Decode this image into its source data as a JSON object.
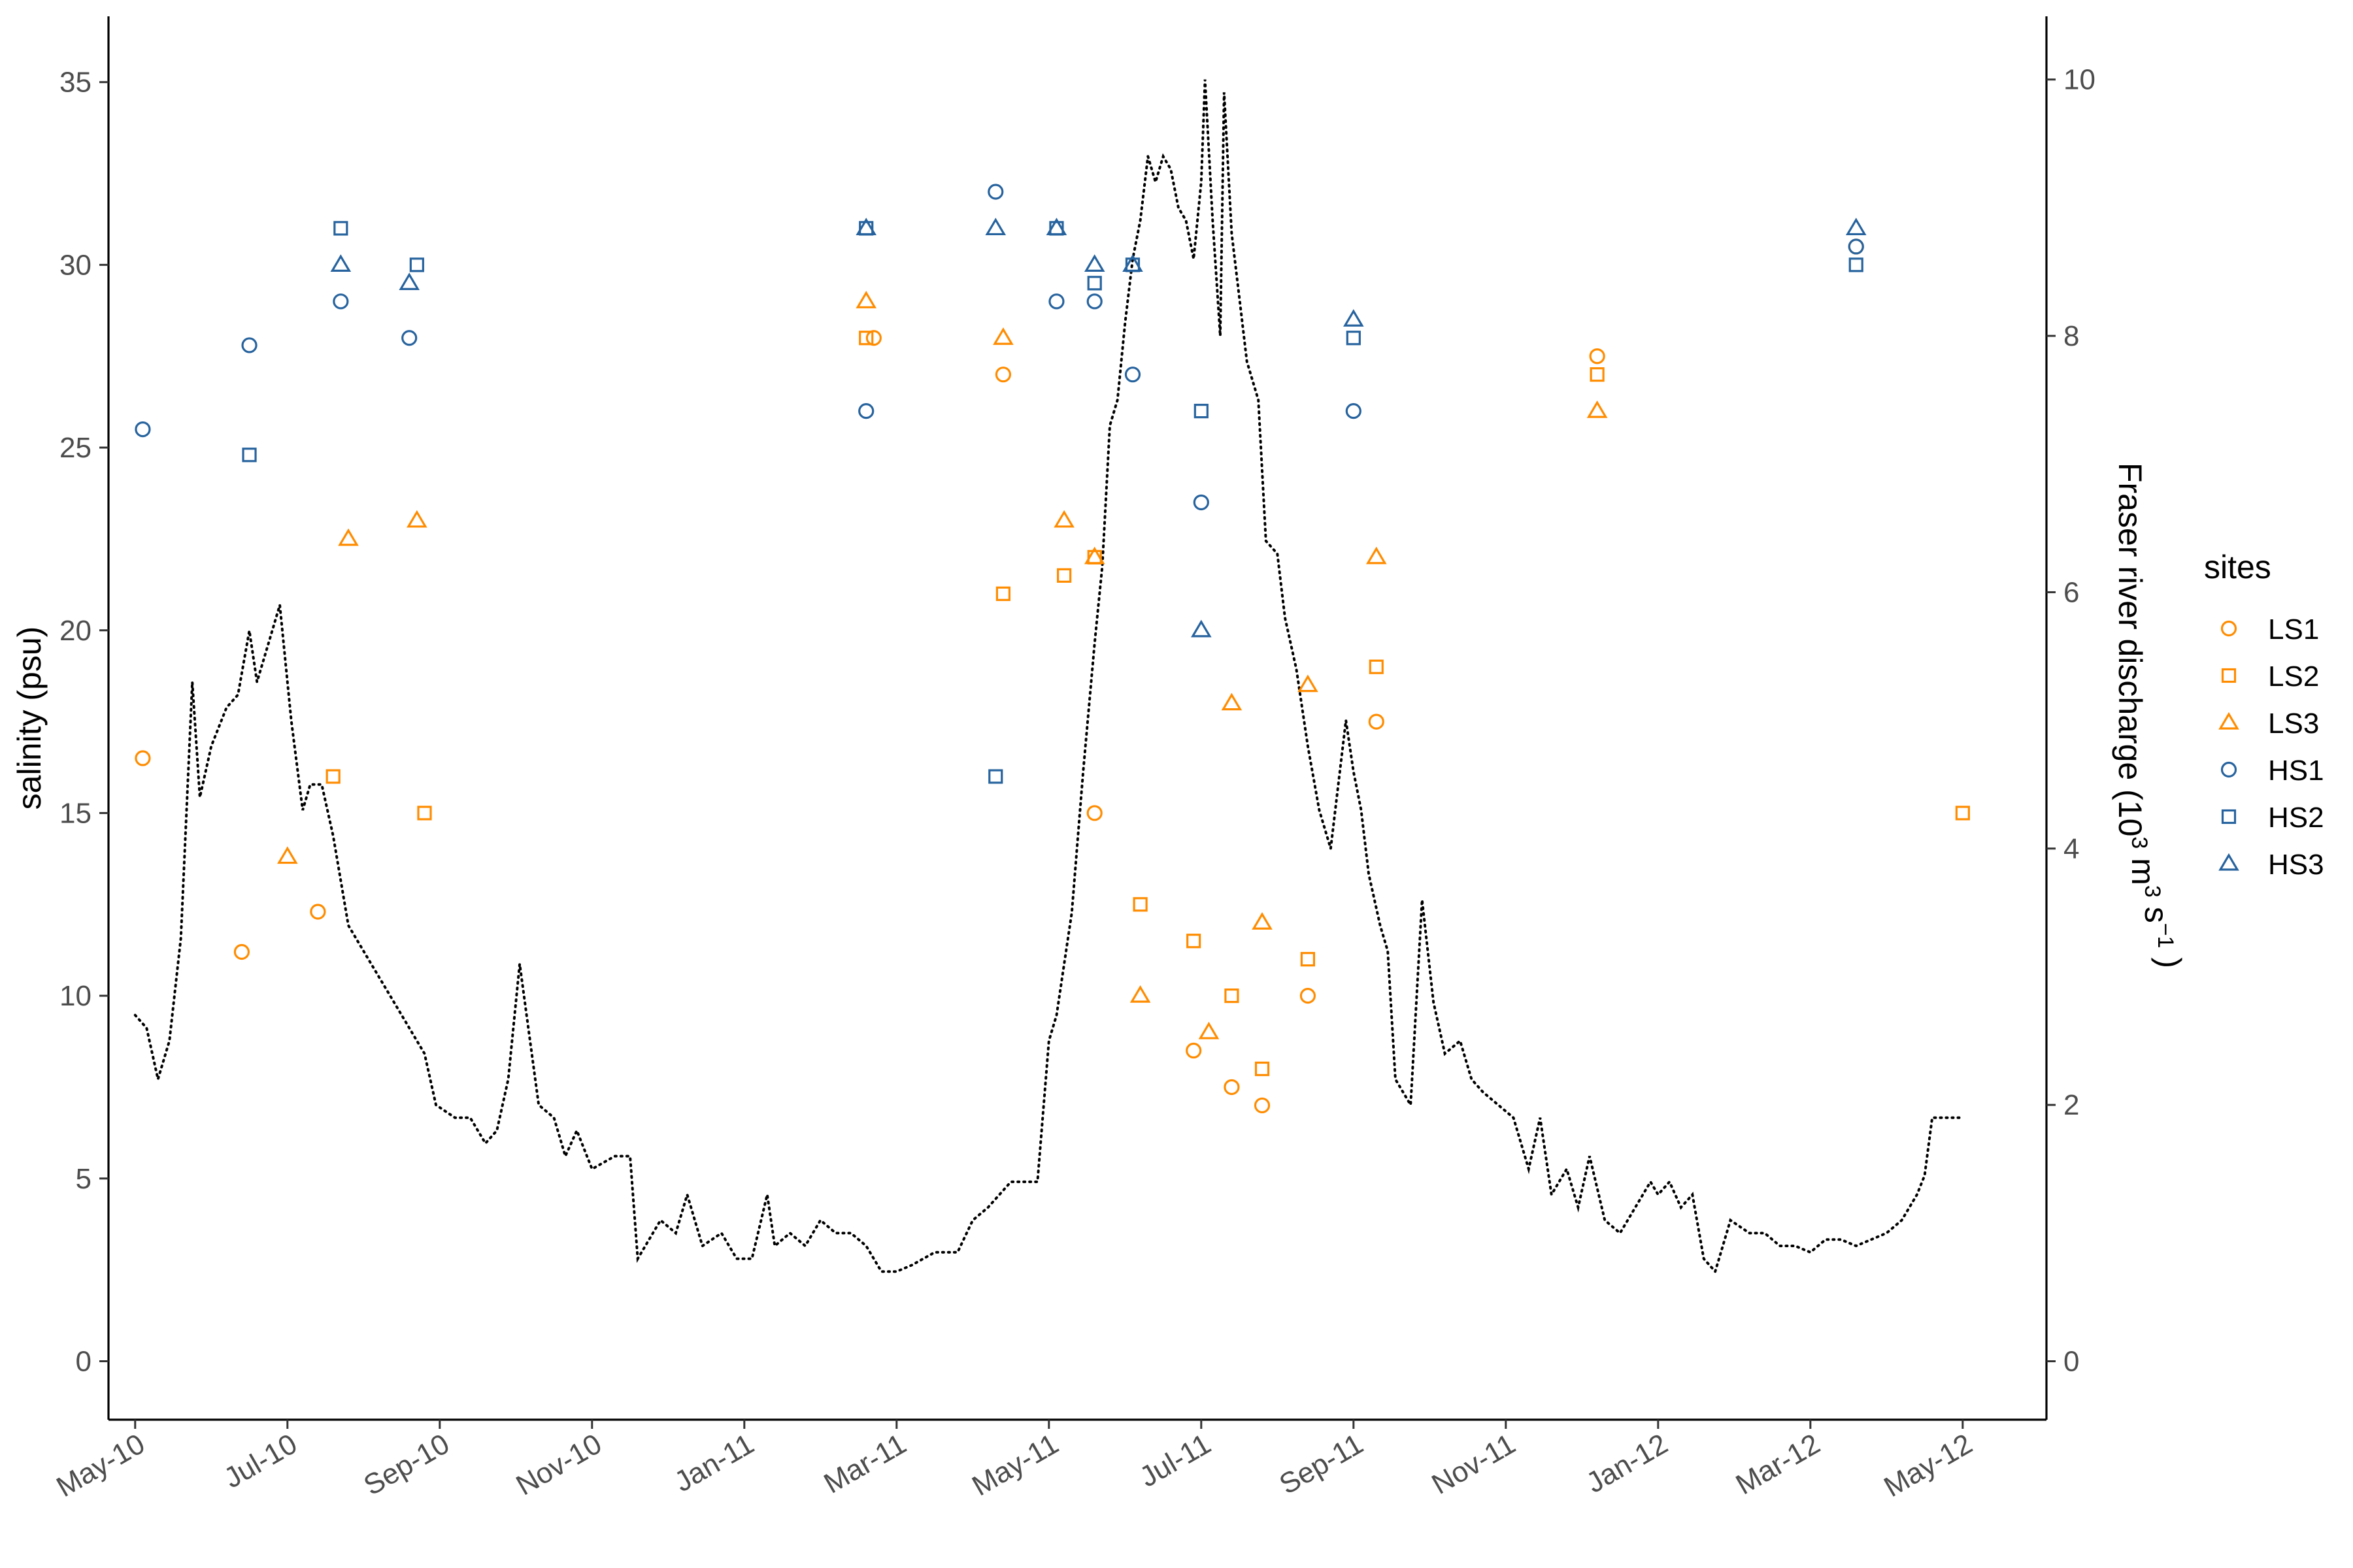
{
  "chart_data": {
    "type": "scatter",
    "left_axis": {
      "label": "salinity (psu)",
      "range": [
        -1.6,
        36.8
      ],
      "ticks": [
        0,
        5,
        10,
        15,
        20,
        25,
        30,
        35
      ]
    },
    "right_axis": {
      "label_prefix": "Fraser river discharge (10",
      "label_sup1": "3",
      "label_mid": " m",
      "label_sup2": "3",
      "label_mid2": " s",
      "label_sup3": "−1",
      "label_suffix": " )",
      "range": [
        -0.456,
        10.493
      ],
      "ticks": [
        0,
        2,
        4,
        6,
        8,
        10
      ]
    },
    "x_axis": {
      "range_months": [
        -0.35,
        25.1
      ],
      "tick_months": [
        0,
        2,
        4,
        6,
        8,
        10,
        12,
        14,
        16,
        18,
        20,
        22,
        24
      ],
      "tick_labels": [
        "May-10",
        "Jul-10",
        "Sep-10",
        "Nov-10",
        "Jan-11",
        "Mar-11",
        "May-11",
        "Jul-11",
        "Sep-11",
        "Nov-11",
        "Jan-12",
        "Mar-12",
        "May-12"
      ]
    },
    "legend": {
      "title": "sites",
      "position": "right",
      "entries": [
        {
          "name": "LS1",
          "shape": "circle",
          "color": "#ff8c00"
        },
        {
          "name": "LS2",
          "shape": "square",
          "color": "#ff8c00"
        },
        {
          "name": "LS3",
          "shape": "triangle",
          "color": "#ff8c00"
        },
        {
          "name": "HS1",
          "shape": "circle",
          "color": "#27639e"
        },
        {
          "name": "HS2",
          "shape": "square",
          "color": "#27639e"
        },
        {
          "name": "HS3",
          "shape": "triangle",
          "color": "#27639e"
        }
      ]
    },
    "series": [
      {
        "name": "LS1",
        "points": [
          [
            0.1,
            16.5
          ],
          [
            1.4,
            11.2
          ],
          [
            2.4,
            12.3
          ],
          [
            9.7,
            28
          ],
          [
            11.4,
            27
          ],
          [
            12.6,
            15
          ],
          [
            13.9,
            8.5
          ],
          [
            14.4,
            7.5
          ],
          [
            14.8,
            7
          ],
          [
            15.4,
            10
          ],
          [
            16.3,
            17.5
          ],
          [
            19.2,
            27.5
          ],
          [
            22.6,
            30.5
          ]
        ]
      },
      {
        "name": "LS2",
        "points": [
          [
            2.6,
            16
          ],
          [
            3.8,
            15
          ],
          [
            9.6,
            28
          ],
          [
            11.4,
            21
          ],
          [
            12.2,
            21.5
          ],
          [
            12.6,
            22
          ],
          [
            13.2,
            12.5
          ],
          [
            13.9,
            11.5
          ],
          [
            14.4,
            10
          ],
          [
            14.8,
            8
          ],
          [
            15.4,
            11
          ],
          [
            16.3,
            19
          ],
          [
            19.2,
            27
          ],
          [
            24,
            15
          ]
        ]
      },
      {
        "name": "LS3",
        "points": [
          [
            2,
            13.8
          ],
          [
            2.8,
            22.5
          ],
          [
            3.7,
            23
          ],
          [
            9.6,
            29
          ],
          [
            11.4,
            28
          ],
          [
            12.2,
            23
          ],
          [
            12.6,
            22
          ],
          [
            13.2,
            10
          ],
          [
            14.1,
            9
          ],
          [
            14.4,
            18
          ],
          [
            14.8,
            12
          ],
          [
            15.4,
            18.5
          ],
          [
            16.3,
            22
          ],
          [
            19.2,
            26
          ]
        ]
      },
      {
        "name": "HS1",
        "points": [
          [
            0.1,
            25.5
          ],
          [
            1.5,
            27.8
          ],
          [
            2.7,
            29
          ],
          [
            3.6,
            28
          ],
          [
            9.6,
            26
          ],
          [
            11.3,
            32
          ],
          [
            12.1,
            29
          ],
          [
            12.6,
            29
          ],
          [
            13.1,
            27
          ],
          [
            14,
            23.5
          ],
          [
            16,
            26
          ],
          [
            22.6,
            30.5
          ]
        ]
      },
      {
        "name": "HS2",
        "points": [
          [
            1.5,
            24.8
          ],
          [
            2.7,
            31
          ],
          [
            3.7,
            30
          ],
          [
            9.6,
            31
          ],
          [
            11.3,
            16
          ],
          [
            12.1,
            31
          ],
          [
            12.6,
            29.5
          ],
          [
            13.1,
            30
          ],
          [
            14,
            26
          ],
          [
            16,
            28
          ],
          [
            22.6,
            30
          ]
        ]
      },
      {
        "name": "HS3",
        "points": [
          [
            2.7,
            30
          ],
          [
            3.6,
            29.5
          ],
          [
            9.6,
            31
          ],
          [
            11.3,
            31
          ],
          [
            12.1,
            31
          ],
          [
            12.6,
            30
          ],
          [
            13.1,
            30
          ],
          [
            14,
            20
          ],
          [
            16,
            28.5
          ],
          [
            22.6,
            31
          ]
        ]
      },
      {
        "name": "Fraser river discharge",
        "style": "dotted",
        "axis": "right",
        "points": [
          [
            0,
            2.7
          ],
          [
            0.15,
            2.6
          ],
          [
            0.3,
            2.2
          ],
          [
            0.45,
            2.5
          ],
          [
            0.6,
            3.3
          ],
          [
            0.75,
            5.3
          ],
          [
            0.85,
            4.4
          ],
          [
            1,
            4.8
          ],
          [
            1.2,
            5.1
          ],
          [
            1.35,
            5.2
          ],
          [
            1.5,
            5.7
          ],
          [
            1.6,
            5.3
          ],
          [
            1.75,
            5.6
          ],
          [
            1.9,
            5.9
          ],
          [
            2.05,
            5.0
          ],
          [
            2.2,
            4.3
          ],
          [
            2.3,
            4.5
          ],
          [
            2.45,
            4.5
          ],
          [
            2.6,
            4.1
          ],
          [
            2.8,
            3.4
          ],
          [
            3.1,
            3.1
          ],
          [
            3.4,
            2.8
          ],
          [
            3.6,
            2.6
          ],
          [
            3.8,
            2.4
          ],
          [
            3.95,
            2.0
          ],
          [
            4.2,
            1.9
          ],
          [
            4.4,
            1.9
          ],
          [
            4.6,
            1.7
          ],
          [
            4.75,
            1.8
          ],
          [
            4.9,
            2.2
          ],
          [
            5.05,
            3.1
          ],
          [
            5.3,
            2.0
          ],
          [
            5.5,
            1.9
          ],
          [
            5.65,
            1.6
          ],
          [
            5.8,
            1.8
          ],
          [
            6.0,
            1.5
          ],
          [
            6.3,
            1.6
          ],
          [
            6.5,
            1.6
          ],
          [
            6.6,
            0.8
          ],
          [
            6.9,
            1.1
          ],
          [
            7.1,
            1.0
          ],
          [
            7.25,
            1.3
          ],
          [
            7.45,
            0.9
          ],
          [
            7.7,
            1.0
          ],
          [
            7.9,
            0.8
          ],
          [
            8.1,
            0.8
          ],
          [
            8.3,
            1.3
          ],
          [
            8.4,
            0.9
          ],
          [
            8.6,
            1.0
          ],
          [
            8.8,
            0.9
          ],
          [
            9.0,
            1.1
          ],
          [
            9.2,
            1.0
          ],
          [
            9.4,
            1.0
          ],
          [
            9.6,
            0.9
          ],
          [
            9.8,
            0.7
          ],
          [
            10.0,
            0.7
          ],
          [
            10.2,
            0.75
          ],
          [
            10.5,
            0.85
          ],
          [
            10.8,
            0.85
          ],
          [
            11.0,
            1.1
          ],
          [
            11.2,
            1.2
          ],
          [
            11.5,
            1.4
          ],
          [
            11.7,
            1.4
          ],
          [
            11.85,
            1.4
          ],
          [
            12.0,
            2.5
          ],
          [
            12.1,
            2.7
          ],
          [
            12.3,
            3.5
          ],
          [
            12.45,
            4.6
          ],
          [
            12.6,
            5.6
          ],
          [
            12.7,
            6.2
          ],
          [
            12.8,
            7.3
          ],
          [
            12.9,
            7.5
          ],
          [
            13.0,
            8.1
          ],
          [
            13.1,
            8.6
          ],
          [
            13.2,
            8.9
          ],
          [
            13.3,
            9.4
          ],
          [
            13.4,
            9.2
          ],
          [
            13.5,
            9.4
          ],
          [
            13.6,
            9.3
          ],
          [
            13.7,
            9.0
          ],
          [
            13.8,
            8.9
          ],
          [
            13.9,
            8.6
          ],
          [
            14.0,
            9.2
          ],
          [
            14.05,
            10.0
          ],
          [
            14.15,
            8.9
          ],
          [
            14.25,
            8.0
          ],
          [
            14.3,
            9.9
          ],
          [
            14.4,
            8.8
          ],
          [
            14.5,
            8.3
          ],
          [
            14.6,
            7.8
          ],
          [
            14.75,
            7.5
          ],
          [
            14.85,
            6.4
          ],
          [
            15.0,
            6.3
          ],
          [
            15.1,
            5.8
          ],
          [
            15.25,
            5.4
          ],
          [
            15.4,
            4.8
          ],
          [
            15.55,
            4.3
          ],
          [
            15.7,
            4.0
          ],
          [
            15.9,
            5.0
          ],
          [
            16.0,
            4.6
          ],
          [
            16.1,
            4.3
          ],
          [
            16.2,
            3.8
          ],
          [
            16.35,
            3.4
          ],
          [
            16.45,
            3.2
          ],
          [
            16.55,
            2.2
          ],
          [
            16.75,
            2.0
          ],
          [
            16.9,
            3.6
          ],
          [
            17.05,
            2.8
          ],
          [
            17.2,
            2.4
          ],
          [
            17.4,
            2.5
          ],
          [
            17.55,
            2.2
          ],
          [
            17.7,
            2.1
          ],
          [
            17.9,
            2.0
          ],
          [
            18.1,
            1.9
          ],
          [
            18.3,
            1.5
          ],
          [
            18.45,
            1.9
          ],
          [
            18.6,
            1.3
          ],
          [
            18.8,
            1.5
          ],
          [
            18.95,
            1.2
          ],
          [
            19.1,
            1.6
          ],
          [
            19.3,
            1.1
          ],
          [
            19.5,
            1.0
          ],
          [
            19.7,
            1.2
          ],
          [
            19.9,
            1.4
          ],
          [
            20.0,
            1.3
          ],
          [
            20.15,
            1.4
          ],
          [
            20.3,
            1.2
          ],
          [
            20.45,
            1.3
          ],
          [
            20.6,
            0.8
          ],
          [
            20.75,
            0.7
          ],
          [
            20.95,
            1.1
          ],
          [
            21.2,
            1.0
          ],
          [
            21.4,
            1.0
          ],
          [
            21.6,
            0.9
          ],
          [
            21.8,
            0.9
          ],
          [
            22.0,
            0.85
          ],
          [
            22.2,
            0.95
          ],
          [
            22.4,
            0.95
          ],
          [
            22.6,
            0.9
          ],
          [
            22.8,
            0.95
          ],
          [
            23.0,
            1.0
          ],
          [
            23.2,
            1.1
          ],
          [
            23.4,
            1.3
          ],
          [
            23.5,
            1.45
          ],
          [
            23.6,
            1.9
          ],
          [
            23.8,
            1.9
          ],
          [
            24.0,
            1.9
          ]
        ]
      }
    ]
  }
}
